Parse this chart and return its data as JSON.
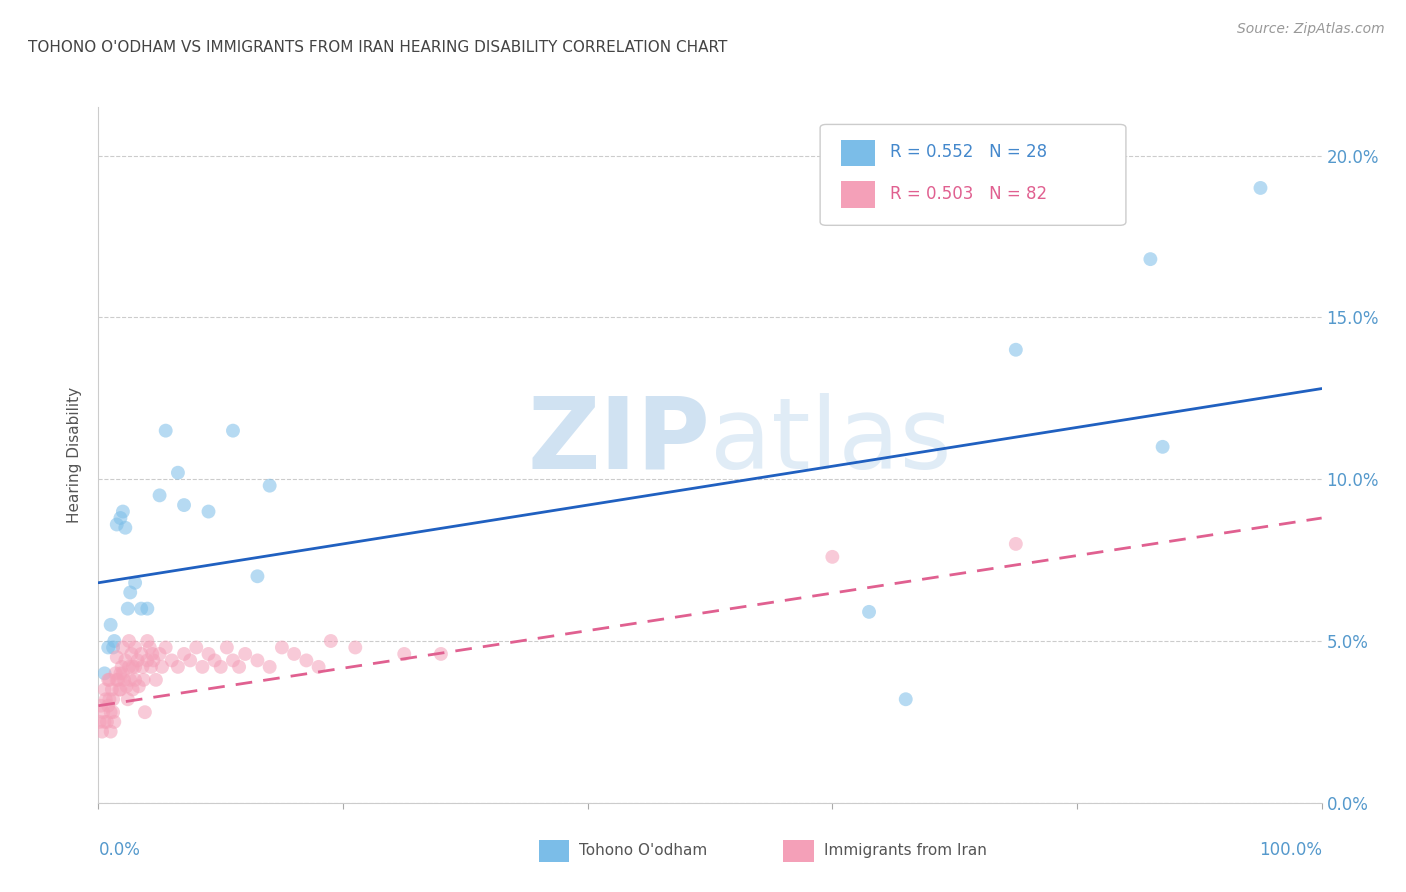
{
  "title": "TOHONO O'ODHAM VS IMMIGRANTS FROM IRAN HEARING DISABILITY CORRELATION CHART",
  "source": "Source: ZipAtlas.com",
  "ylabel": "Hearing Disability",
  "watermark_zip": "ZIP",
  "watermark_atlas": "atlas",
  "series1_name": "Tohono O'odham",
  "series2_name": "Immigrants from Iran",
  "series1_color": "#7bbde8",
  "series2_color": "#f4a0b8",
  "series1_R": "0.552",
  "series1_N": "28",
  "series2_R": "0.503",
  "series2_N": "82",
  "series1_line_color": "#2060c0",
  "series2_line_color": "#e06090",
  "right_yaxis_color": "#5599cc",
  "title_color": "#444444",
  "background_color": "#ffffff",
  "grid_color": "#cccccc",
  "xlim": [
    0.0,
    1.0
  ],
  "ylim": [
    0.0,
    0.215
  ],
  "yticks": [
    0.0,
    0.05,
    0.1,
    0.15,
    0.2
  ],
  "series1_x": [
    0.005,
    0.008,
    0.01,
    0.012,
    0.013,
    0.015,
    0.018,
    0.02,
    0.022,
    0.024,
    0.026,
    0.03,
    0.035,
    0.04,
    0.05,
    0.055,
    0.065,
    0.07,
    0.09,
    0.11,
    0.13,
    0.14,
    0.63,
    0.66,
    0.75,
    0.86,
    0.87,
    0.95
  ],
  "series1_y": [
    0.04,
    0.048,
    0.055,
    0.048,
    0.05,
    0.086,
    0.088,
    0.09,
    0.085,
    0.06,
    0.065,
    0.068,
    0.06,
    0.06,
    0.095,
    0.115,
    0.102,
    0.092,
    0.09,
    0.115,
    0.07,
    0.098,
    0.059,
    0.032,
    0.14,
    0.168,
    0.11,
    0.19
  ],
  "series2_x": [
    0.001,
    0.002,
    0.003,
    0.004,
    0.005,
    0.005,
    0.006,
    0.007,
    0.008,
    0.008,
    0.009,
    0.009,
    0.01,
    0.01,
    0.011,
    0.012,
    0.012,
    0.013,
    0.014,
    0.015,
    0.015,
    0.016,
    0.017,
    0.018,
    0.018,
    0.019,
    0.02,
    0.02,
    0.021,
    0.022,
    0.023,
    0.024,
    0.025,
    0.025,
    0.026,
    0.027,
    0.028,
    0.028,
    0.03,
    0.03,
    0.03,
    0.032,
    0.033,
    0.035,
    0.036,
    0.037,
    0.038,
    0.04,
    0.04,
    0.042,
    0.043,
    0.044,
    0.045,
    0.047,
    0.05,
    0.052,
    0.055,
    0.06,
    0.065,
    0.07,
    0.075,
    0.08,
    0.085,
    0.09,
    0.095,
    0.1,
    0.105,
    0.11,
    0.115,
    0.12,
    0.13,
    0.14,
    0.15,
    0.16,
    0.17,
    0.18,
    0.19,
    0.21,
    0.25,
    0.28,
    0.6,
    0.75
  ],
  "series2_y": [
    0.025,
    0.03,
    0.022,
    0.028,
    0.035,
    0.025,
    0.032,
    0.025,
    0.03,
    0.038,
    0.032,
    0.038,
    0.022,
    0.028,
    0.035,
    0.028,
    0.032,
    0.025,
    0.04,
    0.038,
    0.045,
    0.038,
    0.035,
    0.04,
    0.035,
    0.042,
    0.04,
    0.048,
    0.038,
    0.044,
    0.036,
    0.032,
    0.042,
    0.05,
    0.038,
    0.046,
    0.035,
    0.042,
    0.038,
    0.042,
    0.048,
    0.044,
    0.036,
    0.046,
    0.042,
    0.038,
    0.028,
    0.044,
    0.05,
    0.048,
    0.042,
    0.046,
    0.044,
    0.038,
    0.046,
    0.042,
    0.048,
    0.044,
    0.042,
    0.046,
    0.044,
    0.048,
    0.042,
    0.046,
    0.044,
    0.042,
    0.048,
    0.044,
    0.042,
    0.046,
    0.044,
    0.042,
    0.048,
    0.046,
    0.044,
    0.042,
    0.05,
    0.048,
    0.046,
    0.046,
    0.076,
    0.08
  ],
  "series1_line_y_start": 0.068,
  "series1_line_y_end": 0.128,
  "series2_line_y_start": 0.03,
  "series2_line_y_end": 0.088,
  "marker_size": 100,
  "marker_alpha": 0.55
}
